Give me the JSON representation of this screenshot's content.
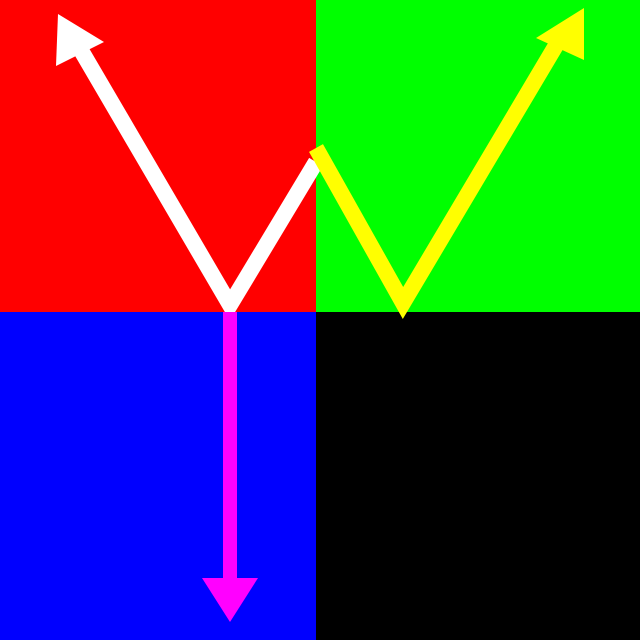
{
  "quadrants": {
    "top_left": {
      "color": "#ff0000"
    },
    "top_right": {
      "color": "#00ff00"
    },
    "bottom_left": {
      "color": "#0000ff"
    },
    "bottom_right": {
      "color": "#000000"
    }
  },
  "arrows": [
    {
      "name": "white-arrow-icon",
      "color": "#ffffff"
    },
    {
      "name": "yellow-arrow-icon",
      "color": "#ffff00"
    },
    {
      "name": "magenta-arrow-icon",
      "color": "#ff00ff"
    }
  ]
}
